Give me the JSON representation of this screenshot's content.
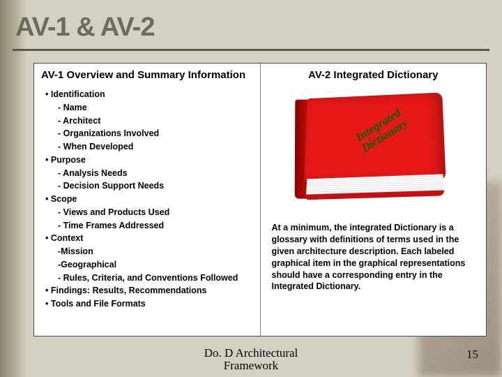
{
  "slide": {
    "title": "AV-1 & AV-2",
    "footer_line1": "Do. D Architectural",
    "footer_line2": "Framework",
    "page_number": "15",
    "background_color": "#d4d0c4",
    "title_color": "#6b6b5f",
    "title_fontsize": 38
  },
  "left_panel": {
    "title": "AV-1 Overview and Summary Information",
    "fontsize": 12.5,
    "items": [
      {
        "level": 0,
        "text": "Identification"
      },
      {
        "level": 1,
        "text": "Name"
      },
      {
        "level": 1,
        "text": "Architect"
      },
      {
        "level": 1,
        "text": "Organizations Involved"
      },
      {
        "level": 1,
        "text": "When Developed"
      },
      {
        "level": 0,
        "text": "Purpose"
      },
      {
        "level": 1,
        "text": "Analysis Needs"
      },
      {
        "level": 1,
        "text": "Decision Support Needs"
      },
      {
        "level": 0,
        "text": "Scope"
      },
      {
        "level": 1,
        "text": "Views and Products Used"
      },
      {
        "level": 1,
        "text": "Time Frames Addressed"
      },
      {
        "level": 0,
        "text": "Context"
      },
      {
        "level": 2,
        "text": "Mission"
      },
      {
        "level": 2,
        "text": "Geographical"
      },
      {
        "level": 1,
        "text": "Rules, Criteria, and Conventions Followed"
      },
      {
        "level": 0,
        "text": "Findings: Results, Recommendations"
      },
      {
        "level": 0,
        "text": "Tools and File Formats"
      }
    ]
  },
  "right_panel": {
    "title": "AV-2 Integrated Dictionary",
    "book_label_line1": "Integrated",
    "book_label_line2": "Dictionary",
    "book_cover_color": "#e61818",
    "book_label_color": "#0a5c0a",
    "description": "At a minimum, the integrated Dictionary is a glossary with definitions of terms used in the given architecture description.  Each labeled graphical item in the graphical representations should have a corresponding entry in the Integrated Dictionary."
  }
}
